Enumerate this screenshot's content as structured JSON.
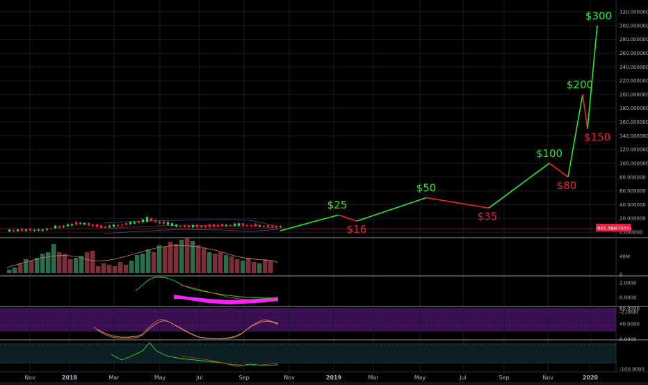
{
  "chart_data": [
    {
      "type": "line",
      "title": "",
      "price_axis": {
        "ticks": [
          "320.000000",
          "300.000000",
          "280.000000",
          "260.000000",
          "240.000000",
          "220.000000",
          "200.000000",
          "180.000000",
          "160.000000",
          "140.000000",
          "120.000000",
          "100.000000",
          "80.000000",
          "60.000000",
          "40.000000",
          "20.000000",
          "0.000000"
        ],
        "ylim": [
          0,
          325
        ]
      },
      "time_axis": {
        "ticks": [
          "Nov",
          "2018",
          "Mar",
          "May",
          "Jul",
          "Sep",
          "Nov",
          "2019",
          "Mar",
          "May",
          "Jul",
          "Sep",
          "Nov",
          "2020"
        ],
        "bold_ticks": [
          "2018",
          "2019",
          "2020"
        ]
      },
      "price_badge": {
        "left": "845.344",
        "right": "5.479341",
        "color": "#e91e43"
      },
      "projection": {
        "labels": [
          "",
          "$25",
          "$16",
          "$50",
          "$35",
          "$100",
          "$80",
          "$200",
          "$150",
          "$300"
        ],
        "values": [
          2,
          25,
          16,
          50,
          35,
          100,
          80,
          200,
          150,
          300
        ],
        "colors": {
          "up": "#2bea2b",
          "down": "#f0203a"
        }
      },
      "grid": true
    },
    {
      "type": "bar",
      "name": "volume",
      "axis_ticks": [
        "40M",
        "0"
      ],
      "colors": {
        "up": "#2d6b4f",
        "down": "#7a2f3a",
        "ma": "#c98a5a"
      }
    },
    {
      "type": "line",
      "name": "oscillator",
      "axis_ticks": [
        "2.0000",
        "0.0000",
        "-2.0000"
      ],
      "colors": {
        "line": "#2bd62b",
        "histogram": "#ff22ff"
      }
    },
    {
      "type": "line",
      "name": "stochastic",
      "axis_ticks": [
        "80.0000",
        "40.0000",
        "0.0000"
      ],
      "colors": {
        "band": "#3a0f52",
        "k": "#e05a4a",
        "d": "#d2a064"
      }
    },
    {
      "type": "line",
      "name": "oscillator-2",
      "axis_ticks": [
        "-100.0000"
      ],
      "colors": {
        "band": "#0b1e22",
        "line": "#2bd62b",
        "signal": "#c04030"
      }
    }
  ]
}
